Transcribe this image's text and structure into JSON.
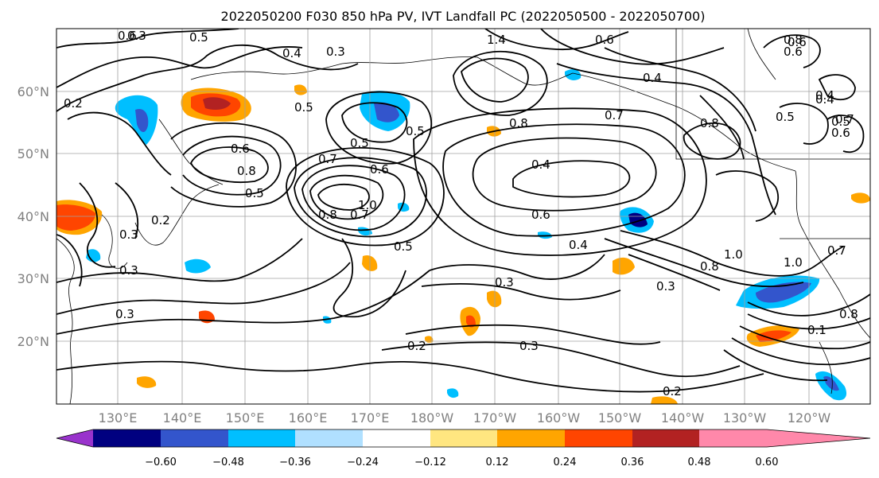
{
  "title": "2022050200 F030 850 hPa PV, IVT Landfall PC (2022050500 - 2022050700)",
  "map": {
    "lat_labels": [
      "20°N",
      "30°N",
      "40°N",
      "50°N",
      "60°N"
    ],
    "lon_labels": [
      "130°E",
      "140°E",
      "150°E",
      "160°E",
      "170°E",
      "180°W",
      "170°W",
      "160°W",
      "150°W",
      "140°W",
      "130°W",
      "120°W"
    ],
    "contour_labels": [
      "0.6",
      "0.5",
      "0.4",
      "0.3",
      "1.4",
      "0.6",
      "0.8",
      "0.6",
      "0.2",
      "0.3",
      "0.4",
      "0.7",
      "0.5",
      "0.8",
      "0.8",
      "0.5",
      "0.4",
      "0.5",
      "0.7",
      "0.6",
      "0.8",
      "0.6",
      "0.5",
      "0.5",
      "0.6",
      "0.8",
      "0.4",
      "0.6",
      "0.5",
      "0.4",
      "0.3",
      "0.2",
      "0.3",
      "0.8",
      "1.0",
      "0.7",
      "0.3",
      "0.3",
      "0.2",
      "0.3",
      "0.4",
      "1.0",
      "0.8",
      "0.2",
      "0.3",
      "0.1",
      "1.0",
      "0.5",
      "0.7",
      "0.6",
      "0.7"
    ]
  },
  "colorbar": {
    "tick_labels": [
      "−0.60",
      "−0.48",
      "−0.36",
      "−0.24",
      "−0.12",
      "0.12",
      "0.24",
      "0.36",
      "0.48",
      "0.60"
    ],
    "colors": [
      "#9933cc",
      "#000080",
      "#3355cc",
      "#00bfff",
      "#b0e0ff",
      "#ffffff",
      "#ffe680",
      "#ffa500",
      "#ff4500",
      "#b22222",
      "#ff88aa"
    ]
  }
}
